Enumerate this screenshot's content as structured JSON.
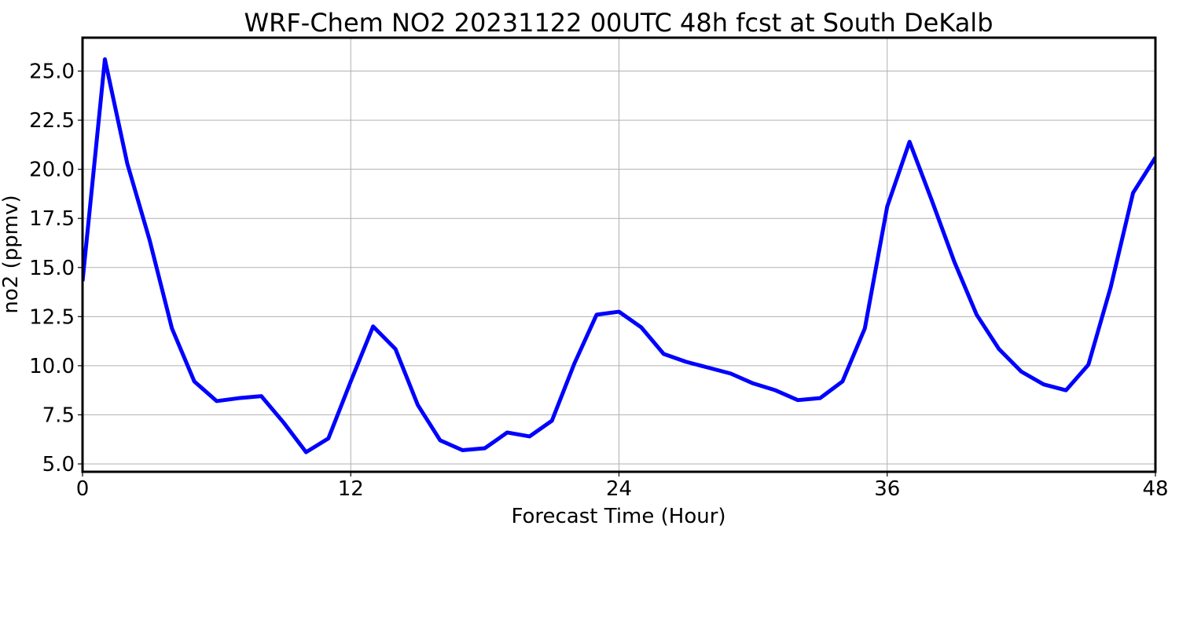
{
  "chart_data": {
    "type": "line",
    "title": "WRF-Chem NO2  20231122 00UTC 48h fcst at South DeKalb",
    "xlabel": "Forecast Time (Hour)",
    "ylabel": "no2  (ppmv)",
    "xlim": [
      0,
      48
    ],
    "ylim": [
      4.6,
      26.7
    ],
    "xticks": [
      0,
      12,
      24,
      36,
      48
    ],
    "yticks": [
      5.0,
      7.5,
      10.0,
      12.5,
      15.0,
      17.5,
      20.0,
      22.5,
      25.0
    ],
    "ytick_labels": [
      "5.0",
      "7.5",
      "10.0",
      "12.5",
      "15.0",
      "17.5",
      "20.0",
      "22.5",
      "25.0"
    ],
    "grid": true,
    "series": [
      {
        "color": "#0000ff",
        "x": [
          0,
          1,
          2,
          3,
          4,
          5,
          6,
          7,
          8,
          9,
          10,
          11,
          12,
          13,
          14,
          15,
          16,
          17,
          18,
          19,
          20,
          21,
          22,
          23,
          24,
          25,
          26,
          27,
          28,
          29,
          30,
          31,
          32,
          33,
          34,
          35,
          36,
          37,
          38,
          39,
          40,
          41,
          42,
          43,
          44,
          45,
          46,
          47,
          48
        ],
        "values": [
          14.3,
          25.6,
          20.3,
          16.4,
          11.9,
          9.2,
          8.2,
          8.35,
          8.45,
          7.1,
          5.6,
          6.3,
          9.2,
          12.0,
          10.85,
          8.0,
          6.2,
          5.7,
          5.8,
          6.6,
          6.4,
          7.2,
          10.1,
          12.6,
          12.75,
          11.95,
          10.6,
          10.2,
          9.9,
          9.6,
          9.1,
          8.75,
          8.25,
          8.35,
          9.2,
          11.9,
          18.1,
          21.4,
          18.4,
          15.3,
          12.6,
          10.85,
          9.7,
          9.05,
          8.75,
          10.05,
          14.0,
          18.8,
          20.6
        ]
      }
    ]
  }
}
